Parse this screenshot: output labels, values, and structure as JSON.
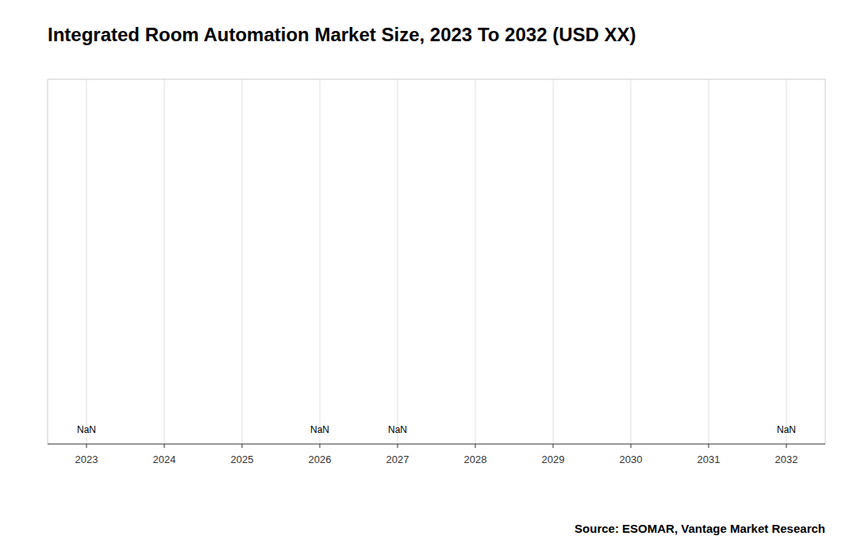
{
  "chart_data": {
    "type": "bar",
    "title": "Integrated Room Automation Market Size, 2023 To 2032 (USD XX)",
    "x": [
      2023,
      2024,
      2025,
      2026,
      2027,
      2028,
      2029,
      2030,
      2031,
      2032
    ],
    "values": [
      0,
      0,
      0,
      0,
      0,
      0,
      0,
      0,
      0,
      0
    ],
    "xlim": [
      2022.5,
      2032.5
    ],
    "xticks": [
      2023,
      2024,
      2025,
      2026,
      2027,
      2028,
      2029,
      2030,
      2031,
      2032
    ],
    "ylim": [
      0,
      1
    ],
    "grid": true,
    "tick_labels": "x",
    "annotations": [
      {
        "x": 2023,
        "text": "NaN"
      },
      {
        "x": 2026,
        "text": "NaN"
      },
      {
        "x": 2027,
        "text": "NaN"
      },
      {
        "x": 2032,
        "text": "NaN"
      }
    ],
    "source": "Source: ESOMAR, Vantage Market Research"
  }
}
